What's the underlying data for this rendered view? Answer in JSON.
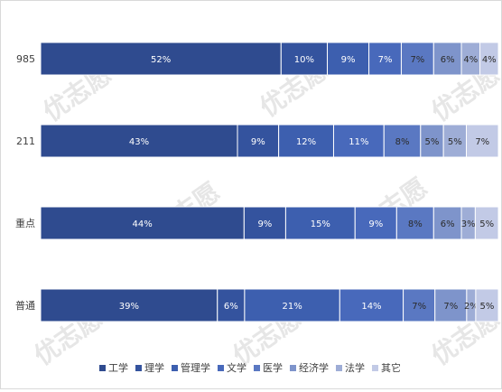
{
  "chart_data": {
    "type": "bar",
    "orientation": "horizontal",
    "stacked": true,
    "categories": [
      "985",
      "211",
      "重点",
      "普通"
    ],
    "series": [
      {
        "name": "工学",
        "color": "#2f4b8f",
        "values": [
          52,
          43,
          44,
          39
        ]
      },
      {
        "name": "理学",
        "color": "#34539e",
        "values": [
          10,
          9,
          9,
          6
        ]
      },
      {
        "name": "管理学",
        "color": "#3d5faf",
        "values": [
          9,
          12,
          15,
          21
        ]
      },
      {
        "name": "文学",
        "color": "#4869bb",
        "values": [
          7,
          11,
          9,
          14
        ]
      },
      {
        "name": "医学",
        "color": "#5a78c2",
        "values": [
          7,
          8,
          8,
          7
        ]
      },
      {
        "name": "经济学",
        "color": "#7e94cb",
        "values": [
          6,
          5,
          6,
          7
        ]
      },
      {
        "name": "法学",
        "color": "#9eadd6",
        "values": [
          4,
          5,
          3,
          2
        ]
      },
      {
        "name": "其它",
        "color": "#c2cae6",
        "values": [
          4,
          7,
          5,
          5
        ]
      }
    ],
    "value_format": "{v}%",
    "xlim": [
      0,
      100
    ],
    "grid": false,
    "legend": "bottom"
  },
  "watermark": {
    "text": "优志愿"
  }
}
